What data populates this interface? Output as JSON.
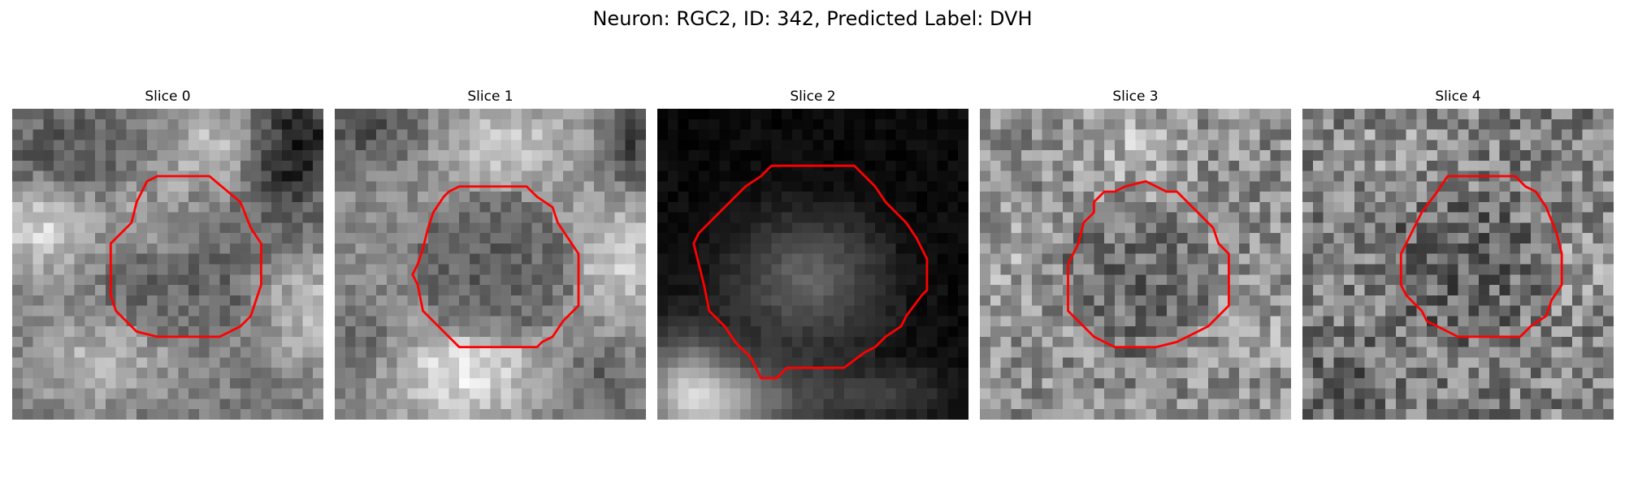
{
  "figure": {
    "title": "Neuron: RGC2, ID: 342, Predicted Label: DVH"
  },
  "panels": [
    {
      "title": "Slice 0"
    },
    {
      "title": "Slice 1"
    },
    {
      "title": "Slice 2"
    },
    {
      "title": "Slice 3"
    },
    {
      "title": "Slice 4"
    }
  ],
  "colors": {
    "contour": "#ff0000",
    "background": "#ffffff"
  }
}
